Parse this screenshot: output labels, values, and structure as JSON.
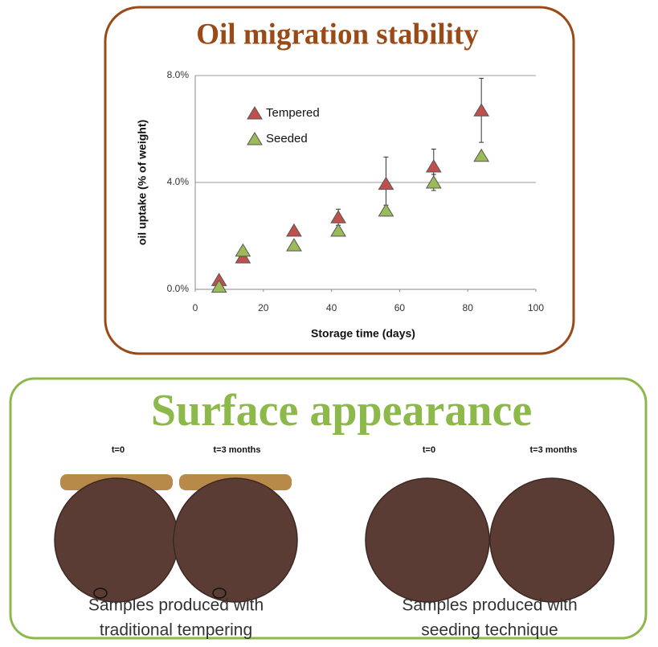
{
  "chart_data": {
    "type": "scatter",
    "title": "Oil migration stability",
    "x_label": "Storage time (days)",
    "y_label": "oil uptake (% of weight)",
    "x": [
      7,
      14,
      29,
      42,
      56,
      70,
      84
    ],
    "series": [
      {
        "name": "Tempered",
        "color": "#c0504d",
        "values": [
          0.35,
          1.2,
          2.2,
          2.7,
          3.95,
          4.6,
          6.7
        ],
        "errors": [
          null,
          0.15,
          null,
          0.3,
          1.0,
          0.65,
          1.2
        ]
      },
      {
        "name": "Seeded",
        "color": "#9bbb59",
        "values": [
          0.1,
          1.45,
          1.65,
          2.2,
          2.95,
          4.0,
          5.0
        ],
        "errors": [
          null,
          null,
          null,
          null,
          0.2,
          0.3,
          null
        ]
      }
    ],
    "xlim": [
      0,
      100
    ],
    "xticks": [
      0,
      20,
      40,
      60,
      80,
      100
    ],
    "ylim": [
      0,
      8
    ],
    "yticks": [
      {
        "value": 0,
        "label": "0.0%"
      },
      {
        "value": 4,
        "label": "4.0%"
      },
      {
        "value": 8,
        "label": "8.0%"
      }
    ],
    "grid": true,
    "legend": "upper left"
  },
  "surface": {
    "title": "Surface appearance",
    "groups": [
      {
        "labels": [
          "t=0",
          "t=3 months"
        ],
        "caption": [
          "Samples produced with",
          "traditional tempering"
        ]
      },
      {
        "labels": [
          "t=0",
          "t=3 months"
        ],
        "caption": [
          "Samples produced with",
          "seeding technique"
        ]
      }
    ]
  }
}
